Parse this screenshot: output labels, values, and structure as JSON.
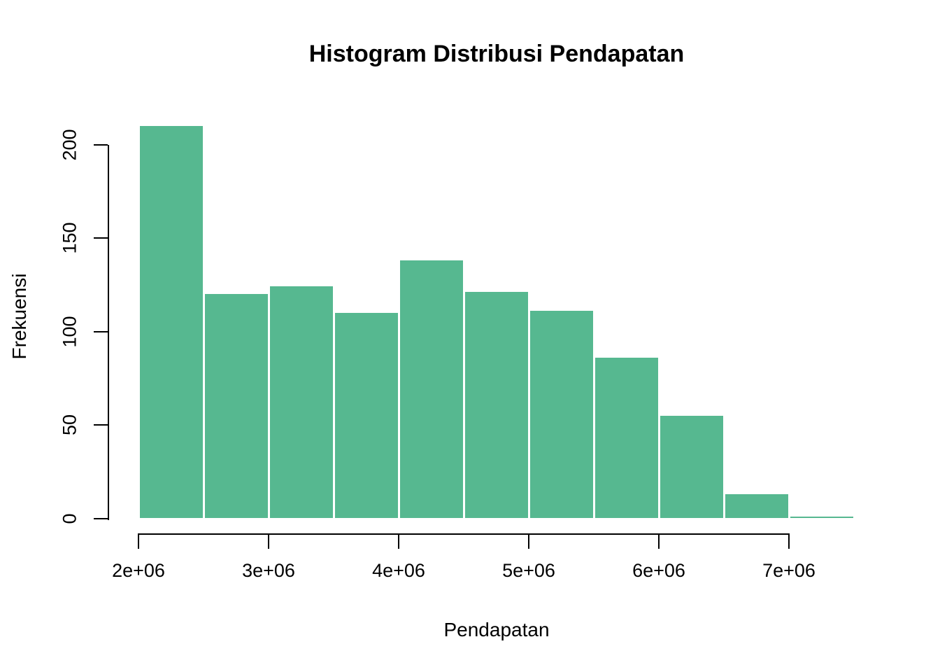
{
  "page": {
    "background": "#FFFFFF"
  },
  "chart_data": {
    "type": "bar",
    "subtype": "histogram",
    "title": "Histogram Distribusi Pendapatan",
    "xlabel": "Pendapatan",
    "ylabel": "Frekuensi",
    "bar_color": "#56B890",
    "bar_border_color": "#FFFFFF",
    "axis_color": "#000000",
    "text_color": "#000000",
    "grid": false,
    "legend": false,
    "xlim": [
      2000000,
      7500000
    ],
    "ylim": [
      0,
      200
    ],
    "bin_width": 500000,
    "bins": [
      {
        "from": 2000000,
        "to": 2500000,
        "count": 210
      },
      {
        "from": 2500000,
        "to": 3000000,
        "count": 120
      },
      {
        "from": 3000000,
        "to": 3500000,
        "count": 124
      },
      {
        "from": 3500000,
        "to": 4000000,
        "count": 110
      },
      {
        "from": 4000000,
        "to": 4500000,
        "count": 138
      },
      {
        "from": 4500000,
        "to": 5000000,
        "count": 121
      },
      {
        "from": 5000000,
        "to": 5500000,
        "count": 111
      },
      {
        "from": 5500000,
        "to": 6000000,
        "count": 86
      },
      {
        "from": 6000000,
        "to": 6500000,
        "count": 55
      },
      {
        "from": 6500000,
        "to": 7000000,
        "count": 13
      },
      {
        "from": 7000000,
        "to": 7500000,
        "count": 1
      }
    ],
    "x_ticks": [
      {
        "value": 2000000,
        "label": "2e+06"
      },
      {
        "value": 3000000,
        "label": "3e+06"
      },
      {
        "value": 4000000,
        "label": "4e+06"
      },
      {
        "value": 5000000,
        "label": "5e+06"
      },
      {
        "value": 6000000,
        "label": "6e+06"
      },
      {
        "value": 7000000,
        "label": "7e+06"
      }
    ],
    "y_ticks": [
      {
        "value": 0,
        "label": "0"
      },
      {
        "value": 50,
        "label": "50"
      },
      {
        "value": 100,
        "label": "100"
      },
      {
        "value": 150,
        "label": "150"
      },
      {
        "value": 200,
        "label": "200"
      }
    ]
  }
}
